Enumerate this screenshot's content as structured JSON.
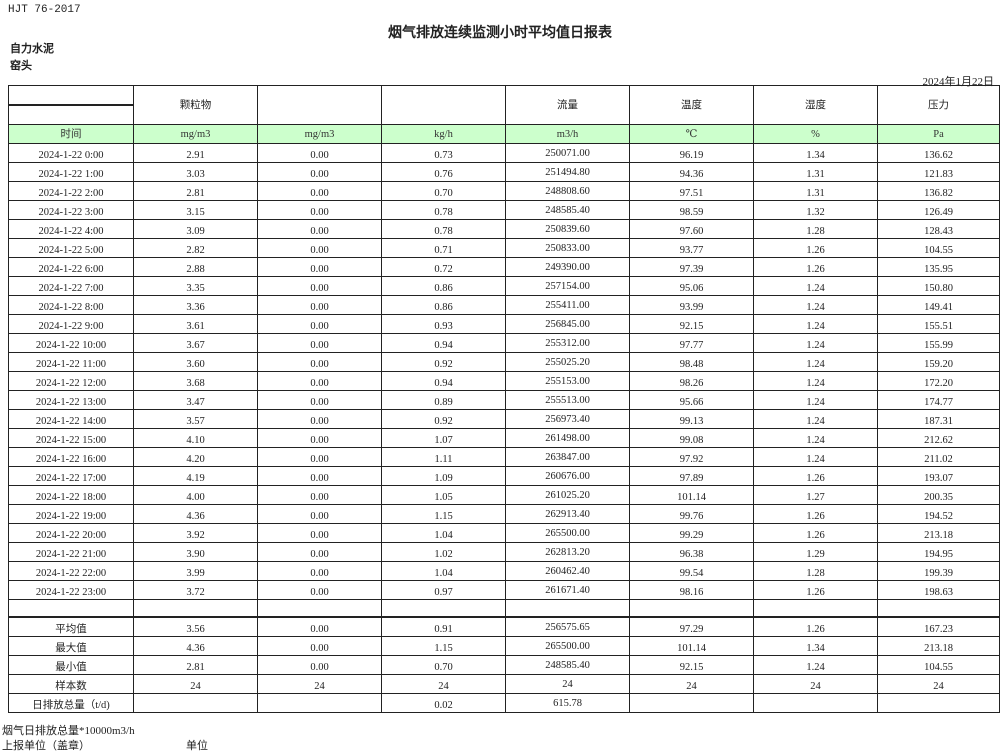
{
  "header": {
    "standard": "HJT  76-2017",
    "title": "烟气排放连续监测小时平均值日报表",
    "company": "自力水泥",
    "location": "窑头",
    "date": "2024年1月22日"
  },
  "table": {
    "columns": [
      "",
      "颗粒物",
      "",
      "",
      "流量",
      "温度",
      "湿度",
      "压力"
    ],
    "units": [
      "时间",
      "mg/m3",
      "mg/m3",
      "kg/h",
      "m3/h",
      "℃",
      "%",
      "Pa"
    ],
    "rows": [
      [
        "2024-1-22 0:00",
        "2.91",
        "0.00",
        "0.73",
        "250071.00",
        "96.19",
        "1.34",
        "136.62"
      ],
      [
        "2024-1-22 1:00",
        "3.03",
        "0.00",
        "0.76",
        "251494.80",
        "94.36",
        "1.31",
        "121.83"
      ],
      [
        "2024-1-22 2:00",
        "2.81",
        "0.00",
        "0.70",
        "248808.60",
        "97.51",
        "1.31",
        "136.82"
      ],
      [
        "2024-1-22 3:00",
        "3.15",
        "0.00",
        "0.78",
        "248585.40",
        "98.59",
        "1.32",
        "126.49"
      ],
      [
        "2024-1-22 4:00",
        "3.09",
        "0.00",
        "0.78",
        "250839.60",
        "97.60",
        "1.28",
        "128.43"
      ],
      [
        "2024-1-22 5:00",
        "2.82",
        "0.00",
        "0.71",
        "250833.00",
        "93.77",
        "1.26",
        "104.55"
      ],
      [
        "2024-1-22 6:00",
        "2.88",
        "0.00",
        "0.72",
        "249390.00",
        "97.39",
        "1.26",
        "135.95"
      ],
      [
        "2024-1-22 7:00",
        "3.35",
        "0.00",
        "0.86",
        "257154.00",
        "95.06",
        "1.24",
        "150.80"
      ],
      [
        "2024-1-22 8:00",
        "3.36",
        "0.00",
        "0.86",
        "255411.00",
        "93.99",
        "1.24",
        "149.41"
      ],
      [
        "2024-1-22 9:00",
        "3.61",
        "0.00",
        "0.93",
        "256845.00",
        "92.15",
        "1.24",
        "155.51"
      ],
      [
        "2024-1-22 10:00",
        "3.67",
        "0.00",
        "0.94",
        "255312.00",
        "97.77",
        "1.24",
        "155.99"
      ],
      [
        "2024-1-22 11:00",
        "3.60",
        "0.00",
        "0.92",
        "255025.20",
        "98.48",
        "1.24",
        "159.20"
      ],
      [
        "2024-1-22 12:00",
        "3.68",
        "0.00",
        "0.94",
        "255153.00",
        "98.26",
        "1.24",
        "172.20"
      ],
      [
        "2024-1-22 13:00",
        "3.47",
        "0.00",
        "0.89",
        "255513.00",
        "95.66",
        "1.24",
        "174.77"
      ],
      [
        "2024-1-22 14:00",
        "3.57",
        "0.00",
        "0.92",
        "256973.40",
        "99.13",
        "1.24",
        "187.31"
      ],
      [
        "2024-1-22 15:00",
        "4.10",
        "0.00",
        "1.07",
        "261498.00",
        "99.08",
        "1.24",
        "212.62"
      ],
      [
        "2024-1-22 16:00",
        "4.20",
        "0.00",
        "1.11",
        "263847.00",
        "97.92",
        "1.24",
        "211.02"
      ],
      [
        "2024-1-22 17:00",
        "4.19",
        "0.00",
        "1.09",
        "260676.00",
        "97.89",
        "1.26",
        "193.07"
      ],
      [
        "2024-1-22 18:00",
        "4.00",
        "0.00",
        "1.05",
        "261025.20",
        "101.14",
        "1.27",
        "200.35"
      ],
      [
        "2024-1-22 19:00",
        "4.36",
        "0.00",
        "1.15",
        "262913.40",
        "99.76",
        "1.26",
        "194.52"
      ],
      [
        "2024-1-22 20:00",
        "3.92",
        "0.00",
        "1.04",
        "265500.00",
        "99.29",
        "1.26",
        "213.18"
      ],
      [
        "2024-1-22 21:00",
        "3.90",
        "0.00",
        "1.02",
        "262813.20",
        "96.38",
        "1.29",
        "194.95"
      ],
      [
        "2024-1-22 22:00",
        "3.99",
        "0.00",
        "1.04",
        "260462.40",
        "99.54",
        "1.28",
        "199.39"
      ],
      [
        "2024-1-22 23:00",
        "3.72",
        "0.00",
        "0.97",
        "261671.40",
        "98.16",
        "1.26",
        "198.63"
      ]
    ],
    "summary": [
      [
        "平均值",
        "3.56",
        "0.00",
        "0.91",
        "256575.65",
        "97.29",
        "1.26",
        "167.23"
      ],
      [
        "最大值",
        "4.36",
        "0.00",
        "1.15",
        "265500.00",
        "101.14",
        "1.34",
        "213.18"
      ],
      [
        "最小值",
        "2.81",
        "0.00",
        "0.70",
        "248585.40",
        "92.15",
        "1.24",
        "104.55"
      ],
      [
        "样本数",
        "24",
        "24",
        "24",
        "24",
        "24",
        "24",
        "24"
      ],
      [
        "日排放总量（t/d)",
        "",
        "",
        "0.02",
        "615.78",
        "",
        "",
        ""
      ]
    ]
  },
  "footer": {
    "note": "烟气日排放总量*10000m3/h",
    "reporter_label": "上报单位（盖章）",
    "unit_label": "单位"
  }
}
